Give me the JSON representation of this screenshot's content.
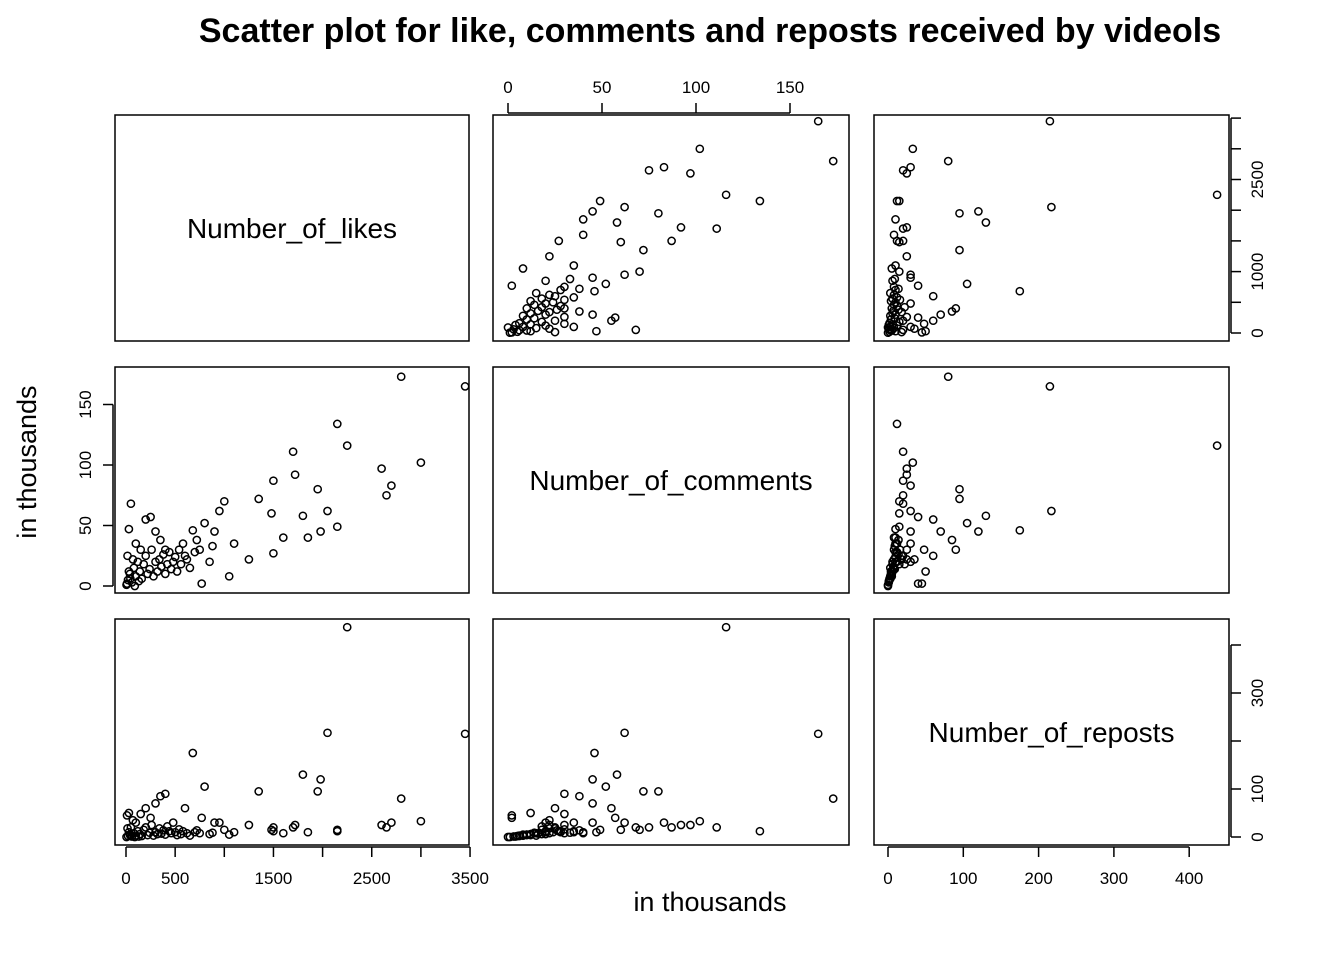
{
  "chart_data": {
    "type": "scatter",
    "title": "Scatter plot for like, comments and reposts received by videols",
    "xlabel": "in thousands",
    "ylabel": "in thousands",
    "variables": [
      "Number_of_likes",
      "Number_of_comments",
      "Number_of_reposts"
    ],
    "axes": {
      "likes_ticks": [
        0,
        500,
        1000,
        1500,
        2000,
        2500,
        3000,
        3500
      ],
      "likes_bottom_labels": [
        "0",
        "500",
        "1500",
        "2500",
        "3500"
      ],
      "likes_right_labels": [
        "0",
        "1000",
        "2500"
      ],
      "comments_ticks": [
        0,
        50,
        100,
        150
      ],
      "comments_labels": [
        "0",
        "50",
        "100",
        "150"
      ],
      "reposts_ticks": [
        0,
        100,
        200,
        300,
        400
      ],
      "reposts_bottom_labels": [
        "0",
        "100",
        "200",
        "300",
        "400"
      ],
      "reposts_right_labels": [
        "0",
        "100",
        "300"
      ]
    },
    "points": [
      [
        3450,
        165,
        215
      ],
      [
        2800,
        173,
        80
      ],
      [
        2250,
        116,
        437
      ],
      [
        2050,
        62,
        217
      ],
      [
        3000,
        102,
        33
      ],
      [
        2150,
        134,
        12
      ],
      [
        2600,
        97,
        25
      ],
      [
        2650,
        75,
        20
      ],
      [
        2700,
        83,
        30
      ],
      [
        1700,
        111,
        20
      ],
      [
        1720,
        92,
        25
      ],
      [
        1800,
        58,
        130
      ],
      [
        1950,
        80,
        95
      ],
      [
        1980,
        45,
        120
      ],
      [
        1500,
        87,
        20
      ],
      [
        1350,
        72,
        95
      ],
      [
        1480,
        60,
        15
      ],
      [
        1850,
        40,
        10
      ],
      [
        2150,
        49,
        15
      ],
      [
        1000,
        70,
        15
      ],
      [
        950,
        62,
        30
      ],
      [
        1100,
        35,
        10
      ],
      [
        1250,
        22,
        25
      ],
      [
        680,
        46,
        175
      ],
      [
        800,
        52,
        105
      ],
      [
        750,
        30,
        8
      ],
      [
        770,
        2,
        40
      ],
      [
        600,
        25,
        60
      ],
      [
        400,
        30,
        90
      ],
      [
        350,
        38,
        85
      ],
      [
        50,
        68,
        20
      ],
      [
        30,
        47,
        10
      ],
      [
        200,
        55,
        60
      ],
      [
        250,
        57,
        40
      ],
      [
        300,
        45,
        70
      ],
      [
        100,
        35,
        30
      ],
      [
        900,
        45,
        30
      ],
      [
        1050,
        8,
        5
      ],
      [
        1500,
        27,
        12
      ],
      [
        1600,
        40,
        8
      ],
      [
        20,
        5,
        2
      ],
      [
        40,
        10,
        5
      ],
      [
        60,
        3,
        1
      ],
      [
        80,
        15,
        8
      ],
      [
        100,
        8,
        3
      ],
      [
        120,
        20,
        12
      ],
      [
        140,
        12,
        6
      ],
      [
        160,
        6,
        2
      ],
      [
        180,
        18,
        15
      ],
      [
        200,
        25,
        20
      ],
      [
        220,
        10,
        4
      ],
      [
        240,
        14,
        9
      ],
      [
        260,
        30,
        25
      ],
      [
        280,
        8,
        3
      ],
      [
        300,
        20,
        10
      ],
      [
        320,
        12,
        6
      ],
      [
        340,
        22,
        18
      ],
      [
        360,
        16,
        7
      ],
      [
        380,
        26,
        14
      ],
      [
        400,
        10,
        5
      ],
      [
        420,
        18,
        22
      ],
      [
        440,
        28,
        12
      ],
      [
        460,
        14,
        8
      ],
      [
        480,
        20,
        30
      ],
      [
        500,
        24,
        10
      ],
      [
        520,
        12,
        4
      ],
      [
        540,
        30,
        16
      ],
      [
        560,
        18,
        6
      ],
      [
        580,
        35,
        12
      ],
      [
        620,
        22,
        8
      ],
      [
        650,
        15,
        3
      ],
      [
        700,
        28,
        10
      ],
      [
        720,
        38,
        14
      ],
      [
        850,
        20,
        6
      ],
      [
        880,
        33,
        9
      ],
      [
        10,
        2,
        45
      ],
      [
        30,
        12,
        50
      ],
      [
        70,
        22,
        35
      ],
      [
        150,
        30,
        48
      ],
      [
        90,
        0,
        0
      ],
      [
        15,
        25,
        18
      ],
      [
        5,
        1,
        0
      ],
      [
        45,
        6,
        3
      ],
      [
        130,
        4,
        1
      ]
    ]
  }
}
